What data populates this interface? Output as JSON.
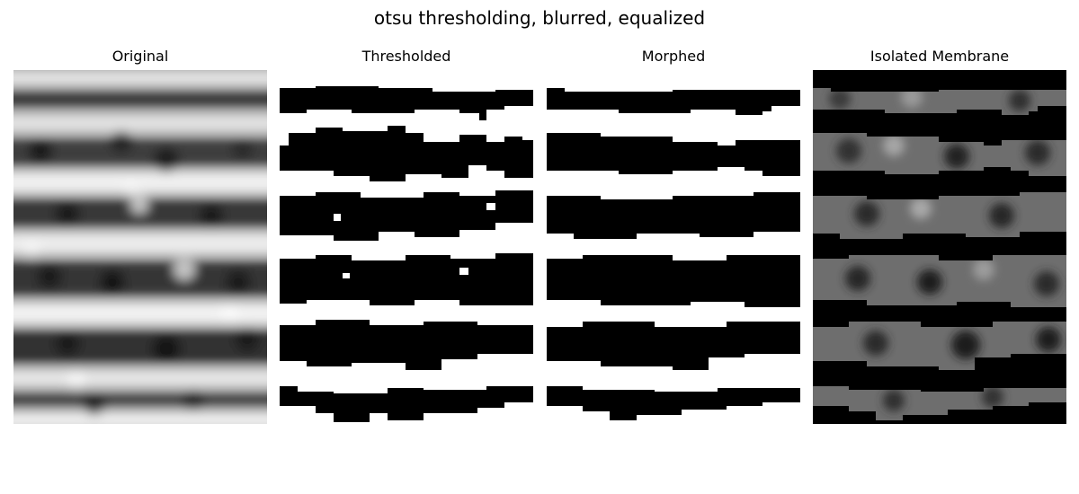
{
  "figure": {
    "title": "otsu thresholding, blurred, equalized"
  },
  "panels": [
    {
      "title": "Original",
      "kind": "grayscale-original"
    },
    {
      "title": "Thresholded",
      "kind": "binary-mask"
    },
    {
      "title": "Morphed",
      "kind": "binary-mask-smoothed"
    },
    {
      "title": "Isolated Membrane",
      "kind": "masked-grayscale"
    }
  ],
  "colors": {
    "background": "#ffffff",
    "mask_black": "#000000",
    "mask_white": "#ffffff"
  }
}
